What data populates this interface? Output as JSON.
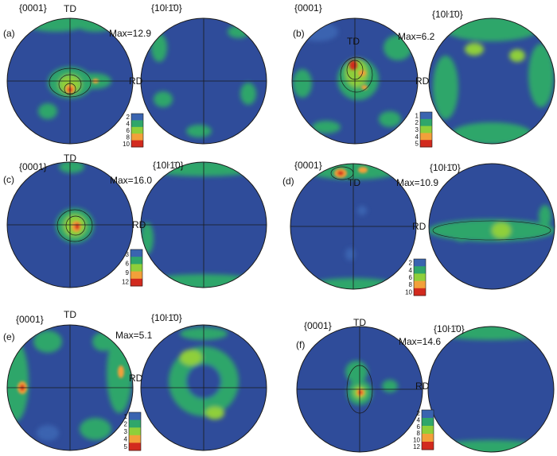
{
  "panels": [
    {
      "id": "a",
      "panel_label": "(a)",
      "pole1_label": "{0001}",
      "pole2_label": "{10ŀ1̄0}",
      "td_label": "TD",
      "rd_label": "RD",
      "max_label": "Max=12.9",
      "scale_ticks": [
        "2",
        "4",
        "6",
        "8",
        "10"
      ]
    },
    {
      "id": "b",
      "panel_label": "(b)",
      "pole1_label": "{0001}",
      "pole2_label": "{10ŀ1̄0}",
      "td_label": "TD",
      "rd_label": "RD",
      "max_label": "Max=6.2",
      "scale_ticks": [
        "1",
        "2",
        "3",
        "4",
        "5"
      ]
    },
    {
      "id": "c",
      "panel_label": "(c)",
      "pole1_label": "{0001}",
      "pole2_label": "{10ŀ1̄0}",
      "td_label": "TD",
      "rd_label": "RD",
      "max_label": "Max=16.0",
      "scale_ticks": [
        "3",
        "6",
        "9",
        "12"
      ]
    },
    {
      "id": "d",
      "panel_label": "(d)",
      "pole1_label": "{0001}",
      "pole2_label": "{10ŀ1̄0}",
      "td_label": "TD",
      "rd_label": "RD",
      "max_label": "Max=10.9",
      "scale_ticks": [
        "2",
        "4",
        "6",
        "8",
        "10"
      ]
    },
    {
      "id": "e",
      "panel_label": "(e)",
      "pole1_label": "{0001}",
      "pole2_label": "{10ŀ1̄0}",
      "td_label": "TD",
      "rd_label": "RD",
      "max_label": "Max=5.1",
      "scale_ticks": [
        "1",
        "2",
        "3",
        "4",
        "5"
      ]
    },
    {
      "id": "f",
      "panel_label": "(f)",
      "pole1_label": "{0001}",
      "pole2_label": "{10ŀ1̄0}",
      "td_label": "TD",
      "rd_label": "RD",
      "max_label": "Max=14.6",
      "scale_ticks": [
        "2",
        "4",
        "6",
        "8",
        "10",
        "12"
      ]
    }
  ],
  "colors": {
    "background": "#2f4c9a",
    "low": "#3a64b0",
    "mid": "#2fa66a",
    "high": "#8fcf3a",
    "peak": "#f2a03a",
    "max": "#d22a1e",
    "line": "#1a1a1a"
  }
}
